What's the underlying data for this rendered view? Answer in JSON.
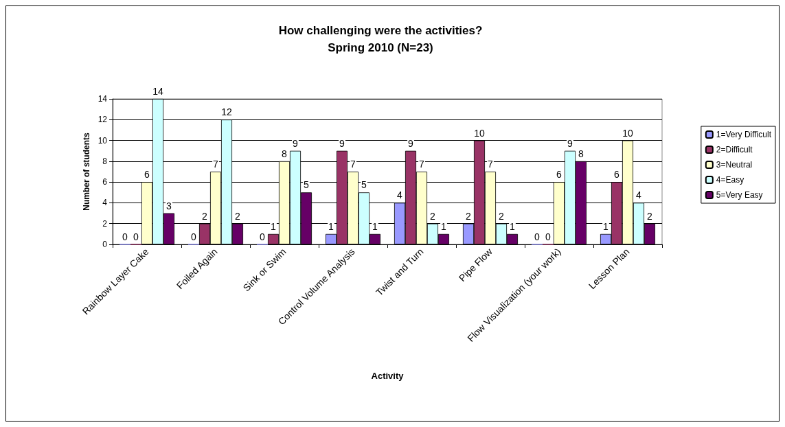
{
  "chart_data": {
    "type": "bar",
    "title": "How challenging were the activities?",
    "subtitle": "Spring 2010 (N=23)",
    "xlabel": "Activity",
    "ylabel": "Number of students",
    "categories": [
      "Rainbow Layer Cake",
      "Foiled Again",
      "Sink or Swim",
      "Control Volume Analysis",
      "Twist and Turn",
      "Pipe Flow",
      "Flow Visualization (your work)",
      "Lesson Plan"
    ],
    "series": [
      {
        "name": "1=Very Difficult",
        "color": "#9999ff",
        "values": [
          0,
          0,
          0,
          1,
          4,
          2,
          0,
          1
        ]
      },
      {
        "name": "2=Difficult",
        "color": "#993366",
        "values": [
          0,
          2,
          1,
          9,
          9,
          10,
          0,
          6
        ]
      },
      {
        "name": "3=Neutral",
        "color": "#ffffcc",
        "values": [
          6,
          7,
          8,
          7,
          7,
          7,
          6,
          10
        ]
      },
      {
        "name": "4=Easy",
        "color": "#ccffff",
        "values": [
          14,
          12,
          9,
          5,
          2,
          2,
          9,
          4
        ]
      },
      {
        "name": "5=Very Easy",
        "color": "#660066",
        "values": [
          3,
          2,
          5,
          1,
          1,
          1,
          8,
          2
        ]
      }
    ],
    "ylim": [
      0,
      14
    ],
    "yticks": [
      0,
      2,
      4,
      6,
      8,
      10,
      12,
      14
    ],
    "grid": "y",
    "legend": "right",
    "data_labels": true
  }
}
